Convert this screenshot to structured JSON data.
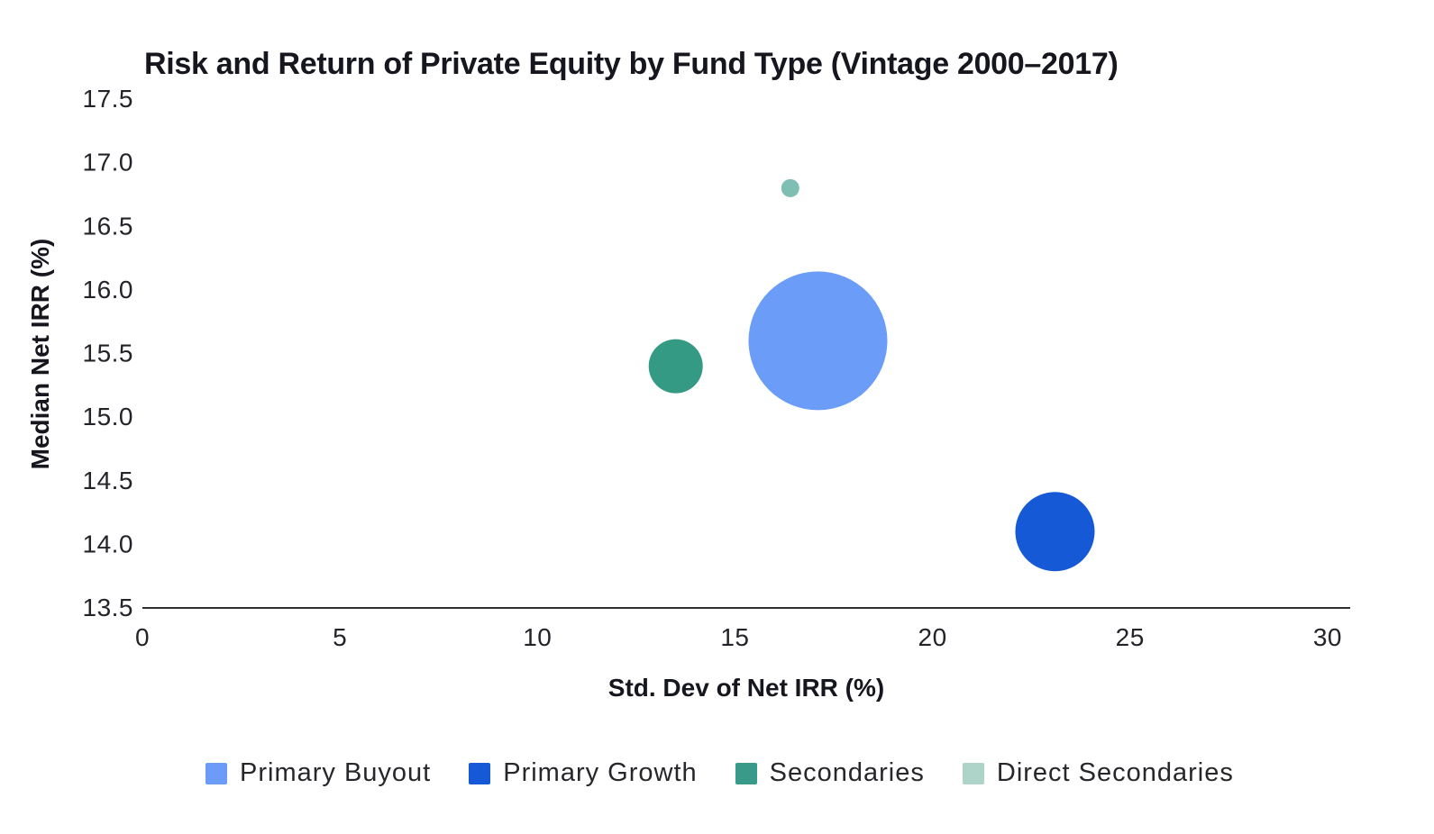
{
  "title": "Risk and Return of Private Equity by Fund Type (Vintage 2000–2017)",
  "colors": {
    "axis_line": "#2f2f2f",
    "title_text": "#16161f",
    "tick_text": "#232329"
  },
  "chart_data": {
    "type": "scatter",
    "title": "Risk and Return of Private Equity by Fund Type (Vintage 2000–2017)",
    "xlabel": "Std. Dev of Net IRR (%)",
    "ylabel": "Median Net IRR (%)",
    "xlim": [
      0,
      30.6
    ],
    "ylim": [
      13.5,
      17.5
    ],
    "x_ticks": [
      "0",
      "5",
      "10",
      "15",
      "20",
      "25",
      "30"
    ],
    "y_ticks": [
      "13.5",
      "14.0",
      "14.5",
      "15.0",
      "15.5",
      "16.0",
      "16.5",
      "17.0",
      "17.5"
    ],
    "grid": false,
    "legend_position": "bottom",
    "series": [
      {
        "name": "Primary Buyout",
        "x": 17.1,
        "y": 15.6,
        "radius_px": 77,
        "color": "#6a9cf8",
        "legend_color": "#6a9cf8"
      },
      {
        "name": "Primary Growth",
        "x": 23.1,
        "y": 14.1,
        "radius_px": 44,
        "color": "#1659d6",
        "legend_color": "#1659d6"
      },
      {
        "name": "Secondaries",
        "x": 13.5,
        "y": 15.4,
        "radius_px": 30,
        "color": "#359a84",
        "legend_color": "#3a9a89"
      },
      {
        "name": "Direct Secondaries",
        "x": 16.4,
        "y": 16.8,
        "radius_px": 10,
        "color": "#7fbeb3",
        "legend_color": "#aed4c9"
      }
    ]
  }
}
